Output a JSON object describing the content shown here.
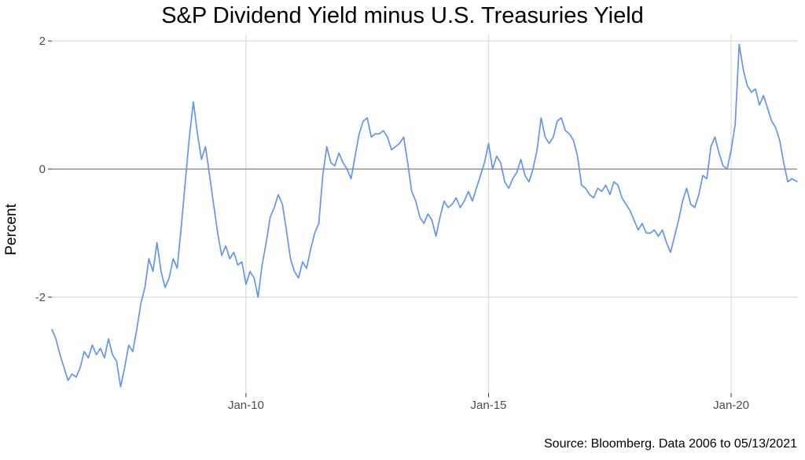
{
  "chart_data": {
    "type": "line",
    "title": "S&P Dividend Yield minus U.S. Treasuries Yield",
    "ylabel": "Percent",
    "xlabel": "",
    "caption": "Source: Bloomberg. Data 2006 to 05/13/2021",
    "x_ticks": [
      {
        "label": "Jan-10",
        "year": 2010.0
      },
      {
        "label": "Jan-15",
        "year": 2015.0
      },
      {
        "label": "Jan-20",
        "year": 2020.0
      }
    ],
    "y_ticks": [
      {
        "label": "-2",
        "value": -2
      },
      {
        "label": "0",
        "value": 0
      },
      {
        "label": "2",
        "value": 2
      }
    ],
    "xlim": [
      2006.0,
      2021.36
    ],
    "ylim": [
      -3.5,
      2.1
    ],
    "grid": true,
    "reference_line": 0,
    "series": [
      {
        "color": "#6495ED",
        "points": [
          [
            "2006-01-01",
            -2.5
          ],
          [
            "2006-02-01",
            -2.65
          ],
          [
            "2006-03-01",
            -2.9
          ],
          [
            "2006-04-01",
            -3.1
          ],
          [
            "2006-05-01",
            -3.3
          ],
          [
            "2006-06-01",
            -3.2
          ],
          [
            "2006-07-01",
            -3.25
          ],
          [
            "2006-08-01",
            -3.1
          ],
          [
            "2006-09-01",
            -2.85
          ],
          [
            "2006-10-01",
            -2.95
          ],
          [
            "2006-11-01",
            -2.75
          ],
          [
            "2006-12-01",
            -2.9
          ],
          [
            "2007-01-01",
            -2.8
          ],
          [
            "2007-02-01",
            -2.95
          ],
          [
            "2007-03-01",
            -2.65
          ],
          [
            "2007-04-01",
            -2.9
          ],
          [
            "2007-05-01",
            -3.0
          ],
          [
            "2007-06-01",
            -3.4
          ],
          [
            "2007-07-01",
            -3.1
          ],
          [
            "2007-08-01",
            -2.75
          ],
          [
            "2007-09-01",
            -2.85
          ],
          [
            "2007-10-01",
            -2.5
          ],
          [
            "2007-11-01",
            -2.1
          ],
          [
            "2007-12-01",
            -1.85
          ],
          [
            "2008-01-01",
            -1.4
          ],
          [
            "2008-02-01",
            -1.6
          ],
          [
            "2008-03-01",
            -1.15
          ],
          [
            "2008-04-01",
            -1.6
          ],
          [
            "2008-05-01",
            -1.85
          ],
          [
            "2008-06-01",
            -1.7
          ],
          [
            "2008-07-01",
            -1.4
          ],
          [
            "2008-08-01",
            -1.55
          ],
          [
            "2008-09-01",
            -0.9
          ],
          [
            "2008-10-01",
            -0.2
          ],
          [
            "2008-11-01",
            0.5
          ],
          [
            "2008-12-01",
            1.05
          ],
          [
            "2009-01-01",
            0.55
          ],
          [
            "2009-02-01",
            0.15
          ],
          [
            "2009-03-01",
            0.35
          ],
          [
            "2009-04-01",
            -0.1
          ],
          [
            "2009-05-01",
            -0.55
          ],
          [
            "2009-06-01",
            -1.0
          ],
          [
            "2009-07-01",
            -1.35
          ],
          [
            "2009-08-01",
            -1.2
          ],
          [
            "2009-09-01",
            -1.4
          ],
          [
            "2009-10-01",
            -1.3
          ],
          [
            "2009-11-01",
            -1.5
          ],
          [
            "2009-12-01",
            -1.45
          ],
          [
            "2010-01-01",
            -1.8
          ],
          [
            "2010-02-01",
            -1.6
          ],
          [
            "2010-03-01",
            -1.7
          ],
          [
            "2010-04-01",
            -2.0
          ],
          [
            "2010-05-01",
            -1.5
          ],
          [
            "2010-06-01",
            -1.15
          ],
          [
            "2010-07-01",
            -0.75
          ],
          [
            "2010-08-01",
            -0.6
          ],
          [
            "2010-09-01",
            -0.4
          ],
          [
            "2010-10-01",
            -0.55
          ],
          [
            "2010-11-01",
            -0.95
          ],
          [
            "2010-12-01",
            -1.4
          ],
          [
            "2011-01-01",
            -1.6
          ],
          [
            "2011-02-01",
            -1.7
          ],
          [
            "2011-03-01",
            -1.45
          ],
          [
            "2011-04-01",
            -1.55
          ],
          [
            "2011-05-01",
            -1.25
          ],
          [
            "2011-06-01",
            -1.0
          ],
          [
            "2011-07-01",
            -0.85
          ],
          [
            "2011-08-01",
            -0.1
          ],
          [
            "2011-09-01",
            0.35
          ],
          [
            "2011-10-01",
            0.1
          ],
          [
            "2011-11-01",
            0.05
          ],
          [
            "2011-12-01",
            0.25
          ],
          [
            "2012-01-01",
            0.1
          ],
          [
            "2012-02-01",
            0.0
          ],
          [
            "2012-03-01",
            -0.15
          ],
          [
            "2012-04-01",
            0.2
          ],
          [
            "2012-05-01",
            0.55
          ],
          [
            "2012-06-01",
            0.75
          ],
          [
            "2012-07-01",
            0.8
          ],
          [
            "2012-08-01",
            0.5
          ],
          [
            "2012-09-01",
            0.55
          ],
          [
            "2012-10-01",
            0.55
          ],
          [
            "2012-11-01",
            0.6
          ],
          [
            "2012-12-01",
            0.5
          ],
          [
            "2013-01-01",
            0.3
          ],
          [
            "2013-02-01",
            0.35
          ],
          [
            "2013-03-01",
            0.4
          ],
          [
            "2013-04-01",
            0.5
          ],
          [
            "2013-05-01",
            0.1
          ],
          [
            "2013-06-01",
            -0.35
          ],
          [
            "2013-07-01",
            -0.5
          ],
          [
            "2013-08-01",
            -0.75
          ],
          [
            "2013-09-01",
            -0.85
          ],
          [
            "2013-10-01",
            -0.7
          ],
          [
            "2013-11-01",
            -0.8
          ],
          [
            "2013-12-01",
            -1.05
          ],
          [
            "2014-01-01",
            -0.75
          ],
          [
            "2014-02-01",
            -0.5
          ],
          [
            "2014-03-01",
            -0.6
          ],
          [
            "2014-04-01",
            -0.55
          ],
          [
            "2014-05-01",
            -0.45
          ],
          [
            "2014-06-01",
            -0.6
          ],
          [
            "2014-07-01",
            -0.5
          ],
          [
            "2014-08-01",
            -0.35
          ],
          [
            "2014-09-01",
            -0.5
          ],
          [
            "2014-10-01",
            -0.3
          ],
          [
            "2014-11-01",
            -0.1
          ],
          [
            "2014-12-01",
            0.1
          ],
          [
            "2015-01-01",
            0.4
          ],
          [
            "2015-02-01",
            0.0
          ],
          [
            "2015-03-01",
            0.2
          ],
          [
            "2015-04-01",
            0.1
          ],
          [
            "2015-05-01",
            -0.2
          ],
          [
            "2015-06-01",
            -0.3
          ],
          [
            "2015-07-01",
            -0.15
          ],
          [
            "2015-08-01",
            -0.05
          ],
          [
            "2015-09-01",
            0.15
          ],
          [
            "2015-10-01",
            -0.1
          ],
          [
            "2015-11-01",
            -0.2
          ],
          [
            "2015-12-01",
            0.0
          ],
          [
            "2016-01-01",
            0.3
          ],
          [
            "2016-02-01",
            0.8
          ],
          [
            "2016-03-01",
            0.5
          ],
          [
            "2016-04-01",
            0.4
          ],
          [
            "2016-05-01",
            0.5
          ],
          [
            "2016-06-01",
            0.75
          ],
          [
            "2016-07-01",
            0.8
          ],
          [
            "2016-08-01",
            0.6
          ],
          [
            "2016-09-01",
            0.55
          ],
          [
            "2016-10-01",
            0.45
          ],
          [
            "2016-11-01",
            0.2
          ],
          [
            "2016-12-01",
            -0.25
          ],
          [
            "2017-01-01",
            -0.3
          ],
          [
            "2017-02-01",
            -0.4
          ],
          [
            "2017-03-01",
            -0.45
          ],
          [
            "2017-04-01",
            -0.3
          ],
          [
            "2017-05-01",
            -0.35
          ],
          [
            "2017-06-01",
            -0.25
          ],
          [
            "2017-07-01",
            -0.4
          ],
          [
            "2017-08-01",
            -0.2
          ],
          [
            "2017-09-01",
            -0.25
          ],
          [
            "2017-10-01",
            -0.45
          ],
          [
            "2017-11-01",
            -0.55
          ],
          [
            "2017-12-01",
            -0.65
          ],
          [
            "2018-01-01",
            -0.8
          ],
          [
            "2018-02-01",
            -0.95
          ],
          [
            "2018-03-01",
            -0.85
          ],
          [
            "2018-04-01",
            -1.0
          ],
          [
            "2018-05-01",
            -1.0
          ],
          [
            "2018-06-01",
            -0.95
          ],
          [
            "2018-07-01",
            -1.05
          ],
          [
            "2018-08-01",
            -0.95
          ],
          [
            "2018-09-01",
            -1.15
          ],
          [
            "2018-10-01",
            -1.3
          ],
          [
            "2018-11-01",
            -1.05
          ],
          [
            "2018-12-01",
            -0.8
          ],
          [
            "2019-01-01",
            -0.5
          ],
          [
            "2019-02-01",
            -0.3
          ],
          [
            "2019-03-01",
            -0.55
          ],
          [
            "2019-04-01",
            -0.6
          ],
          [
            "2019-05-01",
            -0.4
          ],
          [
            "2019-06-01",
            -0.1
          ],
          [
            "2019-07-01",
            -0.15
          ],
          [
            "2019-08-01",
            0.35
          ],
          [
            "2019-09-01",
            0.5
          ],
          [
            "2019-10-01",
            0.25
          ],
          [
            "2019-11-01",
            0.05
          ],
          [
            "2019-12-01",
            0.0
          ],
          [
            "2020-01-01",
            0.3
          ],
          [
            "2020-02-01",
            0.7
          ],
          [
            "2020-03-01",
            1.95
          ],
          [
            "2020-04-01",
            1.55
          ],
          [
            "2020-05-01",
            1.3
          ],
          [
            "2020-06-01",
            1.2
          ],
          [
            "2020-07-01",
            1.25
          ],
          [
            "2020-08-01",
            1.0
          ],
          [
            "2020-09-01",
            1.15
          ],
          [
            "2020-10-01",
            0.95
          ],
          [
            "2020-11-01",
            0.75
          ],
          [
            "2020-12-01",
            0.65
          ],
          [
            "2021-01-01",
            0.45
          ],
          [
            "2021-02-01",
            0.1
          ],
          [
            "2021-03-01",
            -0.2
          ],
          [
            "2021-04-01",
            -0.15
          ],
          [
            "2021-05-13",
            -0.2
          ]
        ]
      }
    ]
  }
}
